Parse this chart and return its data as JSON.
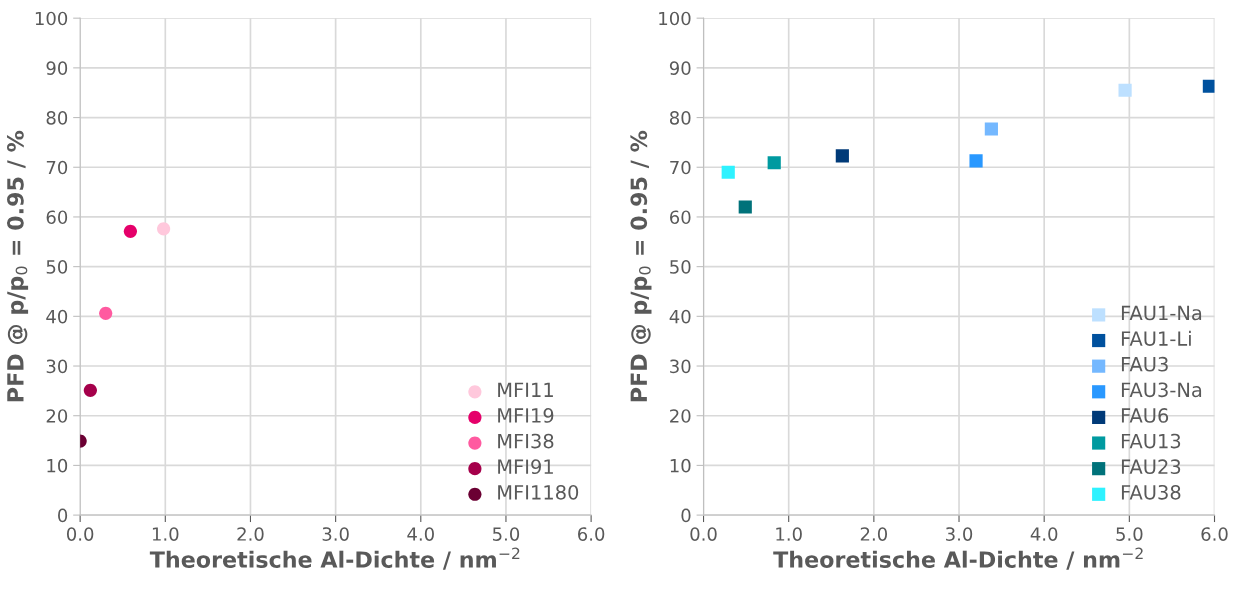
{
  "chart_data": [
    {
      "type": "scatter",
      "xlabel": "Theoretische Al-Dichte / nm$^{−2}$",
      "ylabel": "PFD @ p/p$_{0}$ = 0.95 / %",
      "marker": "circle",
      "grid": true,
      "legend": "bottom right",
      "xlim": [
        0,
        6
      ],
      "xticks": [
        {
          "value": 0,
          "label": "0.0"
        },
        {
          "value": 1,
          "label": "1.0"
        },
        {
          "value": 2,
          "label": "2.0"
        },
        {
          "value": 3,
          "label": "3.0"
        },
        {
          "value": 4,
          "label": "4.0"
        },
        {
          "value": 5,
          "label": "5.0"
        },
        {
          "value": 6,
          "label": "6.0"
        }
      ],
      "ylim": [
        0,
        100
      ],
      "yticks": [
        0,
        10,
        20,
        30,
        40,
        50,
        60,
        70,
        80,
        90,
        100
      ],
      "series": [
        {
          "name": "MFI11",
          "color": "#ffc8dc",
          "x": [
            0.98
          ],
          "values": [
            57.6
          ]
        },
        {
          "name": "MFI19",
          "color": "#e5006a",
          "x": [
            0.59
          ],
          "values": [
            57.1
          ]
        },
        {
          "name": "MFI38",
          "color": "#ff5aa0",
          "x": [
            0.3
          ],
          "values": [
            40.6
          ]
        },
        {
          "name": "MFI91",
          "color": "#a5004b",
          "x": [
            0.12
          ],
          "values": [
            25.1
          ]
        },
        {
          "name": "MFI1180",
          "color": "#6b0033",
          "x": [
            0.0
          ],
          "values": [
            14.9
          ]
        }
      ]
    },
    {
      "type": "scatter",
      "xlabel": "Theoretische Al-Dichte / nm$^{−2}$",
      "ylabel": "PFD @ p/p$_{0}$ = 0.95 / %",
      "marker": "square",
      "grid": true,
      "legend": "bottom right",
      "xlim": [
        0,
        6
      ],
      "xticks": [
        {
          "value": 0,
          "label": "0.0"
        },
        {
          "value": 1,
          "label": "1.0"
        },
        {
          "value": 2,
          "label": "2.0"
        },
        {
          "value": 3,
          "label": "3.0"
        },
        {
          "value": 4,
          "label": "4.0"
        },
        {
          "value": 5,
          "label": "5.0"
        },
        {
          "value": 6,
          "label": "6.0"
        }
      ],
      "ylim": [
        0,
        100
      ],
      "yticks": [
        0,
        10,
        20,
        30,
        40,
        50,
        60,
        70,
        80,
        90,
        100
      ],
      "series": [
        {
          "name": "FAU1-Na",
          "color": "#bde0ff",
          "x": [
            4.95
          ],
          "values": [
            85.5
          ]
        },
        {
          "name": "FAU1-Li",
          "color": "#00519e",
          "x": [
            5.94
          ],
          "values": [
            86.3
          ]
        },
        {
          "name": "FAU3",
          "color": "#74b8ff",
          "x": [
            3.38
          ],
          "values": [
            77.7
          ]
        },
        {
          "name": "FAU3-Na",
          "color": "#2998ff",
          "x": [
            3.2
          ],
          "values": [
            71.3
          ]
        },
        {
          "name": "FAU6",
          "color": "#003a78",
          "x": [
            1.63
          ],
          "values": [
            72.3
          ]
        },
        {
          "name": "FAU13",
          "color": "#009aa0",
          "x": [
            0.83
          ],
          "values": [
            70.9
          ]
        },
        {
          "name": "FAU23",
          "color": "#00727a",
          "x": [
            0.49
          ],
          "values": [
            62.0
          ]
        },
        {
          "name": "FAU38",
          "color": "#2ef2ff",
          "x": [
            0.29
          ],
          "values": [
            69.0
          ]
        }
      ]
    }
  ]
}
